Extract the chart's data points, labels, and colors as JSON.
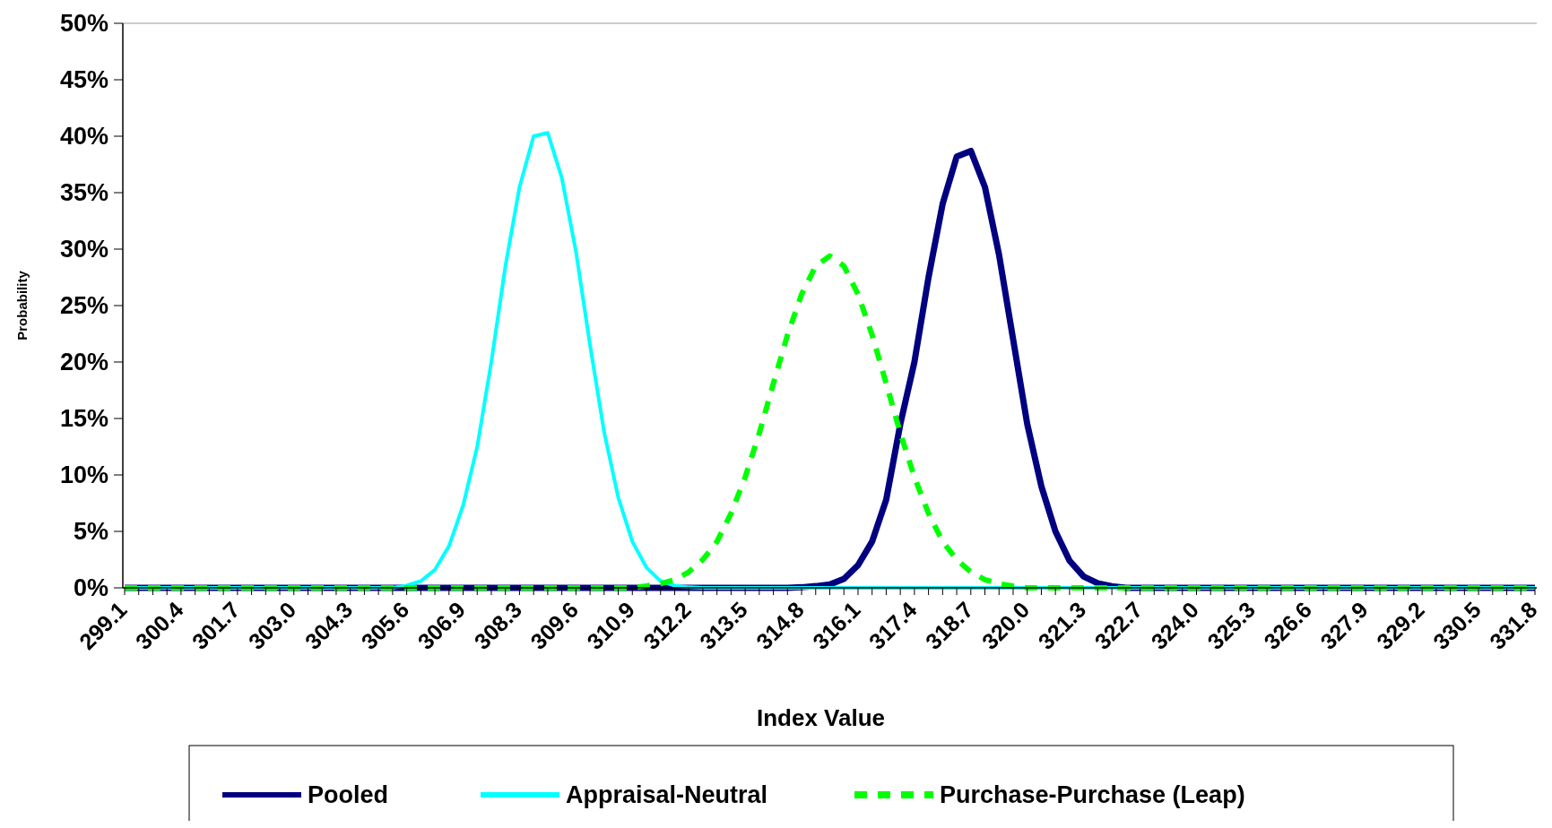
{
  "chart_data": {
    "type": "line",
    "xlabel": "Index Value",
    "ylabel": "Probability",
    "categories": [
      "299.1",
      null,
      null,
      null,
      "300.4",
      null,
      null,
      null,
      "301.7",
      null,
      null,
      null,
      "303.0",
      null,
      null,
      null,
      "304.3",
      null,
      null,
      null,
      "305.6",
      null,
      null,
      null,
      "306.9",
      null,
      null,
      null,
      "308.3",
      null,
      null,
      null,
      "309.6",
      null,
      null,
      null,
      "310.9",
      null,
      null,
      null,
      "312.2",
      null,
      null,
      null,
      "313.5",
      null,
      null,
      null,
      "314.8",
      null,
      null,
      null,
      "316.1",
      null,
      null,
      null,
      "317.4",
      null,
      null,
      null,
      "318.7",
      null,
      null,
      null,
      "320.0",
      null,
      null,
      null,
      "321.3",
      null,
      null,
      null,
      "322.7",
      null,
      null,
      null,
      "324.0",
      null,
      null,
      null,
      "325.3",
      null,
      null,
      null,
      "326.6",
      null,
      null,
      null,
      "327.9",
      null,
      null,
      null,
      "329.2",
      null,
      null,
      null,
      "330.5",
      null,
      null,
      null,
      "331.8"
    ],
    "ylim": [
      0,
      50
    ],
    "yticks": [
      {
        "value": 0,
        "label": "0%"
      },
      {
        "value": 5,
        "label": "5%"
      },
      {
        "value": 10,
        "label": "10%"
      },
      {
        "value": 15,
        "label": "15%"
      },
      {
        "value": 20,
        "label": "20%"
      },
      {
        "value": 25,
        "label": "25%"
      },
      {
        "value": 30,
        "label": "30%"
      },
      {
        "value": 35,
        "label": "35%"
      },
      {
        "value": 40,
        "label": "40%"
      },
      {
        "value": 45,
        "label": "45%"
      },
      {
        "value": 50,
        "label": "50%"
      }
    ],
    "grid": false,
    "legend": "bottom",
    "marker": "none",
    "series": [
      {
        "name": "Pooled",
        "color": "#000080",
        "line_style": "solid",
        "values": [
          0,
          0,
          0,
          0,
          0,
          0,
          0,
          0,
          0,
          0,
          0,
          0,
          0,
          0,
          0,
          0,
          0,
          0,
          0,
          0,
          0,
          0,
          0,
          0,
          0,
          0,
          0,
          0,
          0,
          0,
          0,
          0,
          0,
          0,
          0,
          0,
          0,
          0,
          0,
          0,
          0,
          0,
          0,
          0,
          0,
          0,
          0,
          0,
          0.05,
          0.15,
          0.3,
          0.8,
          2,
          4.1,
          7.8,
          14.5,
          20,
          27.5,
          34,
          38.2,
          38.7,
          35.5,
          29.5,
          22,
          14.5,
          9,
          5,
          2.4,
          1,
          0.4,
          0.15,
          0,
          0,
          0,
          0,
          0,
          0,
          0,
          0,
          0,
          0,
          0,
          0,
          0,
          0,
          0,
          0,
          0,
          0,
          0,
          0,
          0,
          0,
          0,
          0,
          0,
          0,
          0,
          0,
          0,
          0
        ]
      },
      {
        "name": "Appraisal-Neutral",
        "color": "#00ffff",
        "line_style": "solid",
        "values": [
          0,
          0,
          0,
          0,
          0,
          0,
          0,
          0,
          0,
          0,
          0,
          0,
          0,
          0,
          0,
          0,
          0,
          0,
          0,
          0,
          0.2,
          0.6,
          1.6,
          3.7,
          7.3,
          12.5,
          20,
          28.5,
          35.5,
          40,
          40.3,
          36.3,
          29.8,
          21.5,
          13.8,
          8,
          4.1,
          1.8,
          0.6,
          0.2,
          0.05,
          0,
          0,
          0,
          0,
          0,
          0,
          0,
          0,
          0,
          0,
          0,
          0,
          0,
          0,
          0,
          0,
          0,
          0,
          0,
          0,
          0,
          0,
          0,
          0,
          0,
          0,
          0,
          0,
          0,
          0,
          0,
          0,
          0,
          0,
          0,
          0,
          0,
          0,
          0,
          0,
          0,
          0,
          0,
          0,
          0,
          0,
          0,
          0,
          0,
          0,
          0,
          0,
          0,
          0,
          0,
          0,
          0,
          0,
          0,
          0
        ]
      },
      {
        "name": "Purchase-Purchase (Leap)",
        "color": "#00ff00",
        "line_style": "dashed",
        "values": [
          0,
          0,
          0,
          0,
          0,
          0,
          0,
          0,
          0,
          0,
          0,
          0,
          0,
          0,
          0,
          0,
          0,
          0,
          0,
          0,
          0,
          0,
          0,
          0,
          0,
          0,
          0,
          0,
          0,
          0,
          0,
          0,
          0,
          0,
          0,
          0,
          0,
          0.17,
          0.36,
          0.73,
          1.4,
          2.5,
          4.1,
          6.6,
          9.8,
          13.7,
          18.1,
          22.4,
          26,
          28.5,
          29.4,
          28.5,
          26,
          22.4,
          18.1,
          13.7,
          9.8,
          6.6,
          4.1,
          2.5,
          1.4,
          0.73,
          0.36,
          0.17,
          0,
          0,
          0,
          0,
          0,
          0,
          0,
          0,
          0,
          0,
          0,
          0,
          0,
          0,
          0,
          0,
          0,
          0,
          0,
          0,
          0,
          0,
          0,
          0,
          0,
          0,
          0,
          0,
          0,
          0,
          0,
          0,
          0,
          0,
          0,
          0,
          0
        ]
      }
    ]
  }
}
